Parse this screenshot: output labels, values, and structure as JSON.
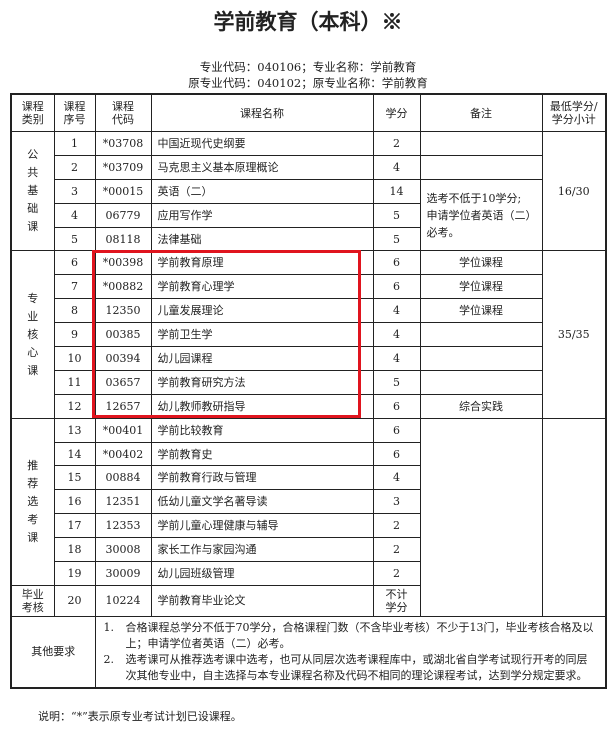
{
  "title": "学前教育（本科）※",
  "major_line": "专业代码：040106；专业名称：学前教育",
  "orig_line": "原专业代码：040102；原专业名称：学前教育",
  "headers": [
    "课程\n类别",
    "课程\n序号",
    "课程\n代码",
    "课程名称",
    "学分",
    "备注",
    "最低学分/\n学分小计"
  ],
  "groups": [
    {
      "name": "公\n共\n基\n础\n课",
      "subtotal": "16/30",
      "note": "选考不低于10学分;\n申请学位者英语（二）\n必考。"
    },
    {
      "name": "专\n业\n核\n心\n课",
      "subtotal": "35/35"
    },
    {
      "name": "推\n荐\n选\n考\n课"
    },
    {
      "name": "毕业\n考核"
    }
  ],
  "rows": [
    {
      "no": "1",
      "code": "*03708",
      "name": "中国近现代史纲要",
      "credit": "2"
    },
    {
      "no": "2",
      "code": "*03709",
      "name": "马克思主义基本原理概论",
      "credit": "4"
    },
    {
      "no": "3",
      "code": "*00015",
      "name": "英语（二）",
      "credit": "14"
    },
    {
      "no": "4",
      "code": "06779",
      "name": "应用写作学",
      "credit": "5"
    },
    {
      "no": "5",
      "code": "08118",
      "name": "法律基础",
      "credit": "5"
    },
    {
      "no": "6",
      "code": "*00398",
      "name": "学前教育原理",
      "credit": "6",
      "note": "学位课程"
    },
    {
      "no": "7",
      "code": "*00882",
      "name": "学前教育心理学",
      "credit": "6",
      "note": "学位课程"
    },
    {
      "no": "8",
      "code": "12350",
      "name": "儿童发展理论",
      "credit": "4",
      "note": "学位课程"
    },
    {
      "no": "9",
      "code": "00385",
      "name": "学前卫生学",
      "credit": "4",
      "note": ""
    },
    {
      "no": "10",
      "code": "00394",
      "name": "幼儿园课程",
      "credit": "4",
      "note": ""
    },
    {
      "no": "11",
      "code": "03657",
      "name": "学前教育研究方法",
      "credit": "5",
      "note": ""
    },
    {
      "no": "12",
      "code": "12657",
      "name": "幼儿教师教研指导",
      "credit": "6",
      "note": "综合实践"
    },
    {
      "no": "13",
      "code": "*00401",
      "name": "学前比较教育",
      "credit": "6"
    },
    {
      "no": "14",
      "code": "*00402",
      "name": "学前教育史",
      "credit": "6"
    },
    {
      "no": "15",
      "code": "00884",
      "name": "学前教育行政与管理",
      "credit": "4"
    },
    {
      "no": "16",
      "code": "12351",
      "name": "低幼儿童文学名著导读",
      "credit": "3"
    },
    {
      "no": "17",
      "code": "12353",
      "name": "学前儿童心理健康与辅导",
      "credit": "2"
    },
    {
      "no": "18",
      "code": "30008",
      "name": "家长工作与家园沟通",
      "credit": "2"
    },
    {
      "no": "19",
      "code": "30009",
      "name": "幼儿园班级管理",
      "credit": "2"
    },
    {
      "no": "20",
      "code": "10224",
      "name": "学前教育毕业论文",
      "credit": "不计\n学分"
    }
  ],
  "other": {
    "label": "其他要求",
    "items": [
      {
        "n": "1.",
        "text": "合格课程总学分不低于70学分，合格课程门数（不含毕业考核）不少于13门，毕业考核合格及以上；申请学位者英语（二）必考。"
      },
      {
        "n": "2.",
        "text": "选考课可从推荐选考课中选考，也可从同层次选考课程库中，或湖北省自学考试现行开考的同层次其他专业中，自主选择与本专业课程名称及代码不相同的理论课程考试，达到学分规定要求。"
      }
    ]
  },
  "footnote": "说明：“*”表示原专业考试计划已设课程。",
  "highlight_color": "#e0141e"
}
